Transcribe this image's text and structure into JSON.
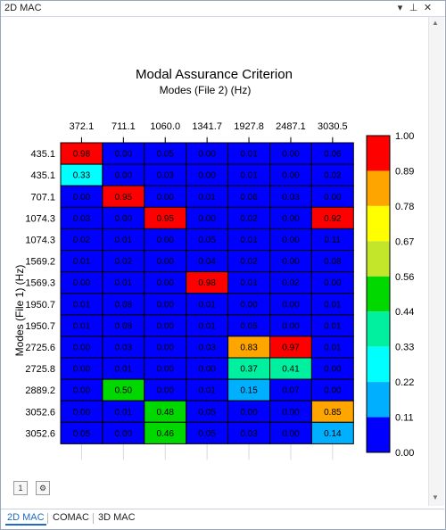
{
  "panel": {
    "title": "2D MAC"
  },
  "titlebar_icons": {
    "dropdown": "▾",
    "pin": "⊥",
    "close": "✕"
  },
  "chart_data": {
    "type": "heatmap",
    "title": "Modal Assurance Criterion",
    "subtitle": "Modes (File 2) (Hz)",
    "ylabel": "Modes (File 1) (Hz)",
    "x_labels": [
      "372.1",
      "711.1",
      "1060.0",
      "1341.7",
      "1927.8",
      "2487.1",
      "3030.5"
    ],
    "y_labels": [
      "435.1",
      "435.1",
      "707.1",
      "1074.3",
      "1074.3",
      "1569.2",
      "1569.3",
      "1950.7",
      "1950.7",
      "2725.6",
      "2725.8",
      "2889.2",
      "3052.6",
      "3052.6"
    ],
    "values": [
      [
        0.98,
        0.0,
        0.05,
        0.0,
        0.01,
        0.0,
        0.06
      ],
      [
        0.33,
        0.0,
        0.03,
        0.0,
        0.01,
        0.0,
        0.02
      ],
      [
        0.0,
        0.95,
        0.0,
        0.01,
        0.06,
        0.03,
        0.0
      ],
      [
        0.03,
        0.0,
        0.95,
        0.0,
        0.02,
        0.0,
        0.92
      ],
      [
        0.02,
        0.01,
        0.0,
        0.05,
        0.01,
        0.0,
        0.11
      ],
      [
        0.01,
        0.02,
        0.0,
        0.04,
        0.02,
        0.0,
        0.08
      ],
      [
        0.0,
        0.01,
        0.0,
        0.98,
        0.01,
        0.02,
        0.0
      ],
      [
        0.01,
        0.08,
        0.0,
        0.01,
        0.0,
        0.0,
        0.01
      ],
      [
        0.01,
        0.08,
        0.0,
        0.01,
        0.05,
        0.0,
        0.01
      ],
      [
        0.0,
        0.03,
        0.0,
        0.03,
        0.83,
        0.97,
        0.01
      ],
      [
        0.0,
        0.01,
        0.0,
        0.0,
        0.37,
        0.41,
        0.0
      ],
      [
        0.0,
        0.5,
        0.0,
        0.01,
        0.15,
        0.07,
        0.0
      ],
      [
        0.0,
        0.01,
        0.48,
        0.05,
        0.0,
        0.0,
        0.85
      ],
      [
        0.05,
        0.0,
        0.46,
        0.05,
        0.03,
        0.0,
        0.14
      ]
    ],
    "colorbar": {
      "ticks": [
        "1.00",
        "0.89",
        "0.78",
        "0.67",
        "0.56",
        "0.44",
        "0.33",
        "0.22",
        "0.11",
        "0.00"
      ],
      "colors_top_to_bottom": [
        "#ff0000",
        "#ffa500",
        "#ffff00",
        "#c3e62a",
        "#00d800",
        "#00f0a0",
        "#00ffff",
        "#00b0ff",
        "#0000ff"
      ],
      "range": [
        0,
        1
      ]
    }
  },
  "toolbar": {
    "btn1": "1",
    "btn2": "⚙"
  },
  "tabs": [
    {
      "label": "2D MAC",
      "active": true
    },
    {
      "label": "COMAC",
      "active": false
    },
    {
      "label": "3D MAC",
      "active": false
    }
  ]
}
